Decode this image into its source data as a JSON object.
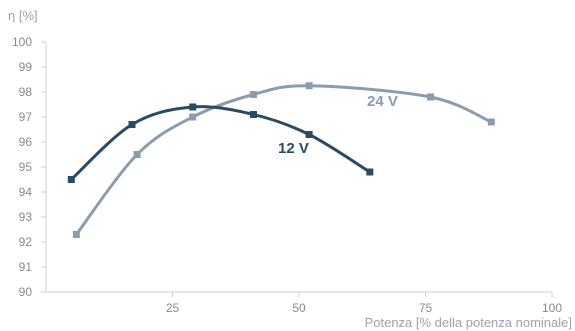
{
  "chart_data": {
    "type": "line",
    "ylabel": "η [%]",
    "xlabel": "Potenza [% della potenza nominale]",
    "xlim": [
      0,
      100
    ],
    "ylim": [
      90,
      100
    ],
    "xticks": [
      "25",
      "50",
      "75",
      "100"
    ],
    "yticks": [
      "90",
      "91",
      "92",
      "93",
      "94",
      "95",
      "96",
      "97",
      "98",
      "99",
      "100"
    ],
    "grid": false,
    "legend": "none",
    "series": [
      {
        "name": "12 V",
        "color": "#2b4a63",
        "x": [
          5,
          17,
          29,
          41,
          52,
          64
        ],
        "y": [
          94.5,
          96.7,
          97.4,
          97.1,
          96.3,
          94.8
        ]
      },
      {
        "name": "24 V",
        "color": "#8a9db0",
        "x": [
          6,
          18,
          29,
          41,
          52,
          76,
          88
        ],
        "y": [
          92.3,
          95.5,
          97.0,
          97.9,
          98.25,
          97.8,
          96.8
        ]
      }
    ]
  }
}
